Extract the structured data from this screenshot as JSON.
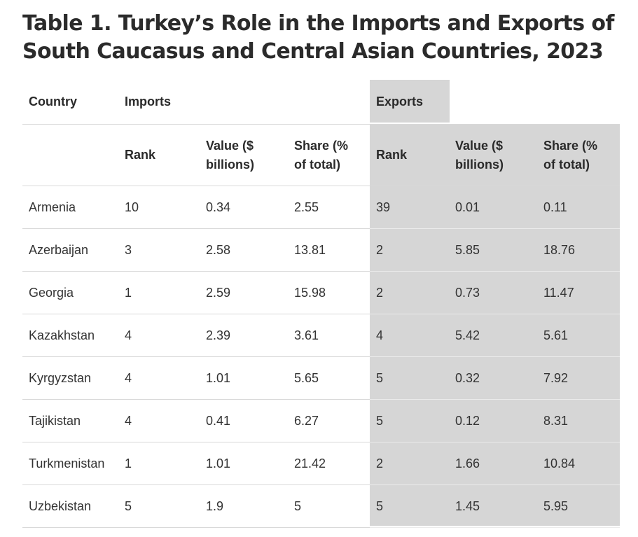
{
  "title": "Table 1. Turkey’s Role in the Imports and Exports of South Caucasus and Central Asian Countries, 2023",
  "header": {
    "country": "Country",
    "imports": "Imports",
    "exports": "Exports",
    "imports_rank": "Rank",
    "imports_value_line1": "Value ($",
    "imports_value_line2": "billions)",
    "imports_share_line1": "Share (%",
    "imports_share_line2": "of total)",
    "exports_rank": "Rank",
    "exports_value_line1": "Value ($",
    "exports_value_line2": "billions)",
    "exports_share_line1": "Share (%",
    "exports_share_line2": "of total)"
  },
  "rows": [
    {
      "country": "Armenia",
      "imp_rank": "10",
      "imp_value": "0.34",
      "imp_share": "2.55",
      "exp_rank": "39",
      "exp_value": "0.01",
      "exp_share": "0.11"
    },
    {
      "country": "Azerbaijan",
      "imp_rank": "3",
      "imp_value": "2.58",
      "imp_share": "13.81",
      "exp_rank": "2",
      "exp_value": "5.85",
      "exp_share": "18.76"
    },
    {
      "country": "Georgia",
      "imp_rank": "1",
      "imp_value": "2.59",
      "imp_share": "15.98",
      "exp_rank": "2",
      "exp_value": "0.73",
      "exp_share": "11.47"
    },
    {
      "country": "Kazakhstan",
      "imp_rank": "4",
      "imp_value": "2.39",
      "imp_share": "3.61",
      "exp_rank": "4",
      "exp_value": "5.42",
      "exp_share": "5.61"
    },
    {
      "country": "Kyrgyzstan",
      "imp_rank": "4",
      "imp_value": "1.01",
      "imp_share": "5.65",
      "exp_rank": "5",
      "exp_value": "0.32",
      "exp_share": "7.92"
    },
    {
      "country": "Tajikistan",
      "imp_rank": "4",
      "imp_value": "0.41",
      "imp_share": "6.27",
      "exp_rank": "5",
      "exp_value": "0.12",
      "exp_share": "8.31"
    },
    {
      "country": "Turkmenistan",
      "imp_rank": "1",
      "imp_value": "1.01",
      "imp_share": "21.42",
      "exp_rank": "2",
      "exp_value": "1.66",
      "exp_share": "10.84"
    },
    {
      "country": "Uzbekistan",
      "imp_rank": "5",
      "imp_value": "1.9",
      "imp_share": "5",
      "exp_rank": "5",
      "exp_value": "1.45",
      "exp_share": "5.95"
    }
  ]
}
